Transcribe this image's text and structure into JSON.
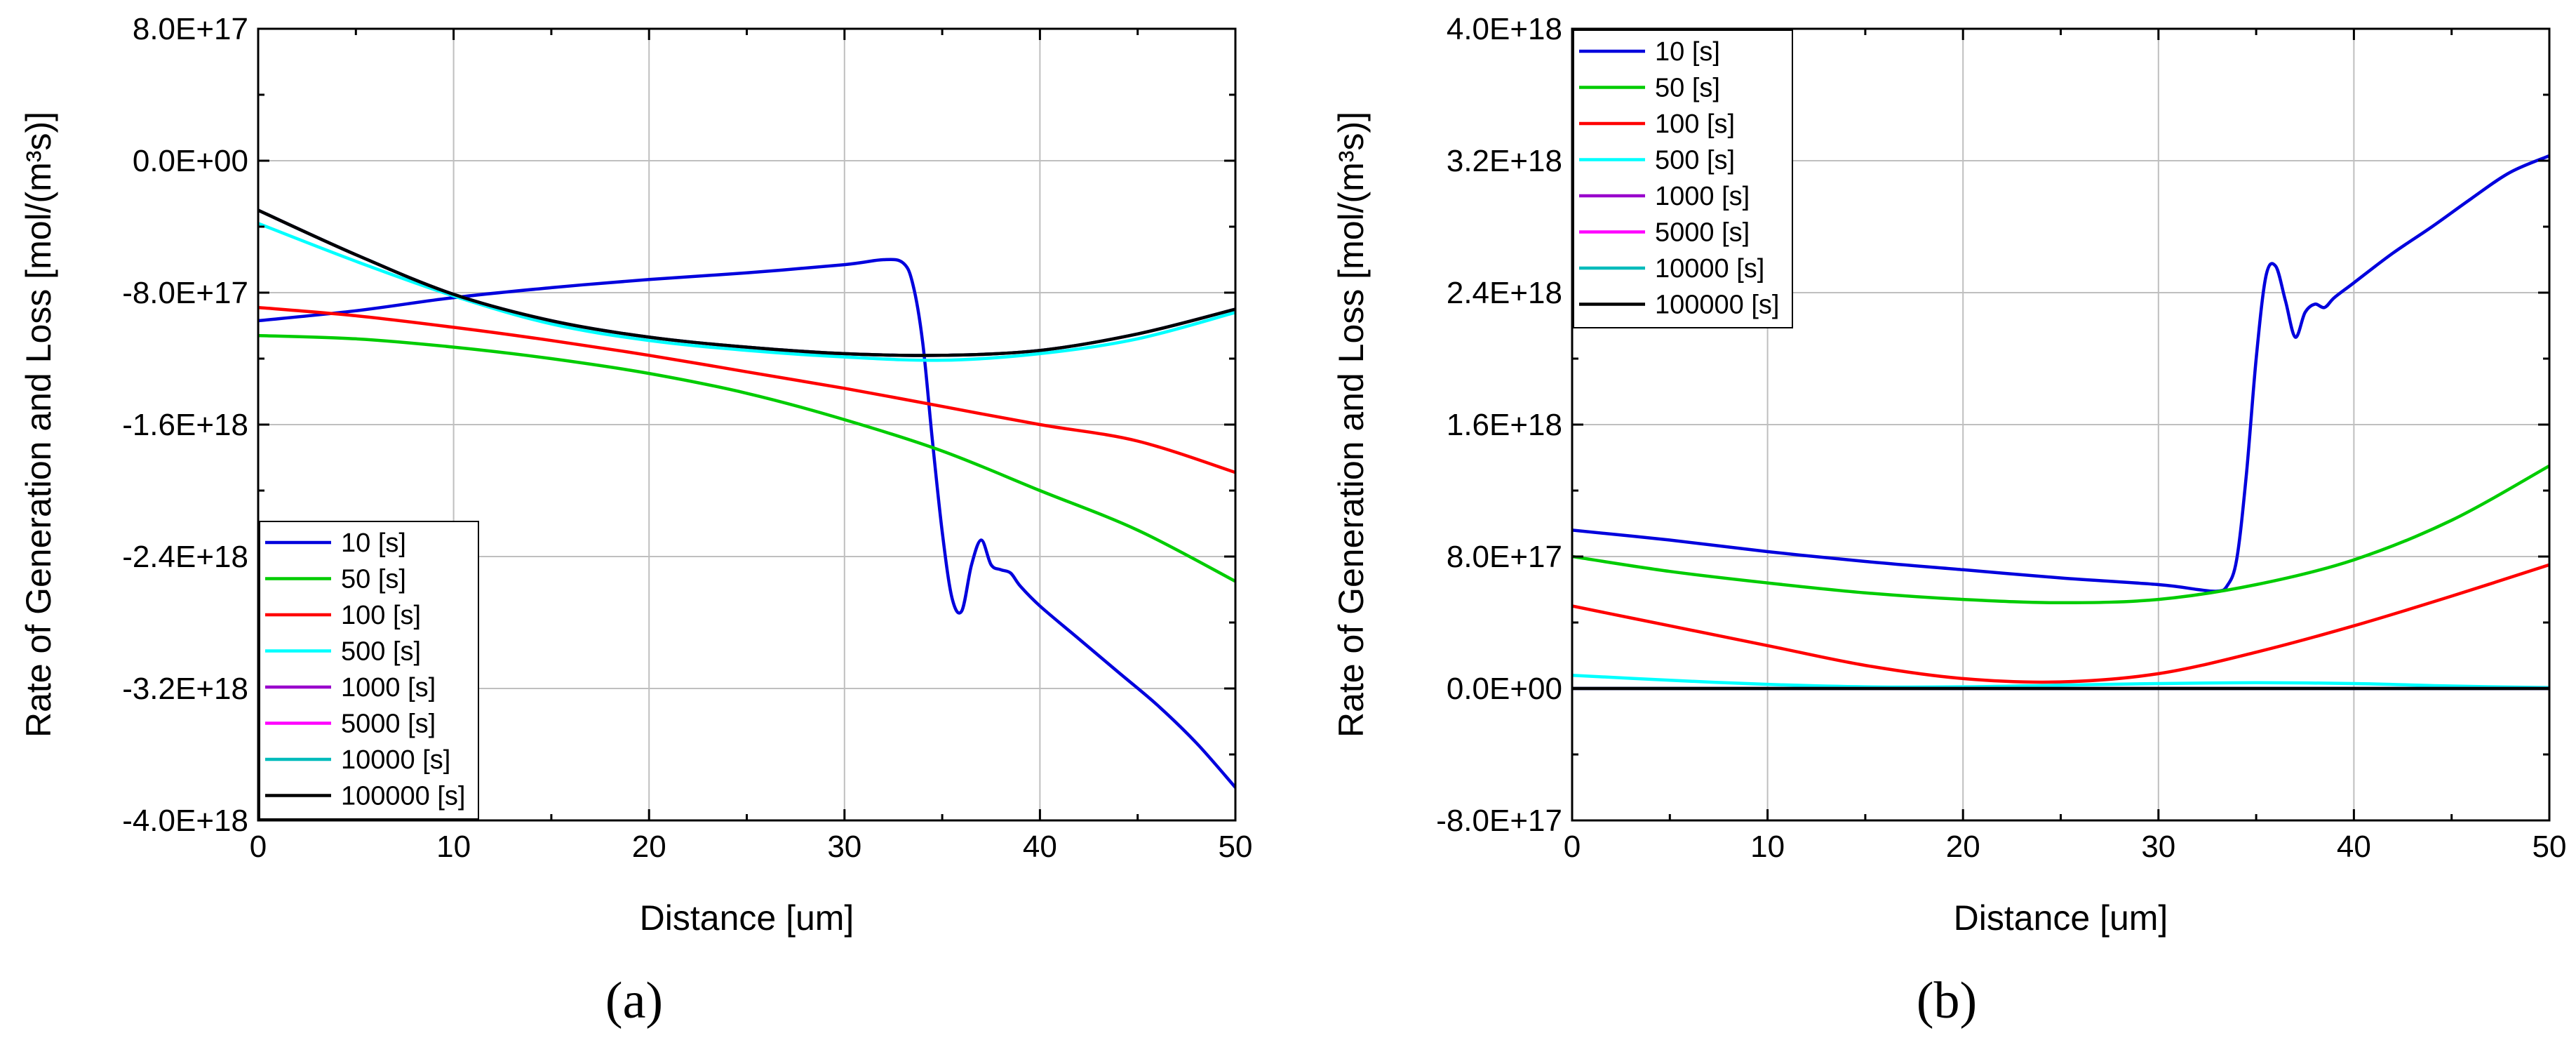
{
  "chart_data": [
    {
      "panel_label": "(a)",
      "type": "line",
      "title": "",
      "xlabel": "Distance [um]",
      "ylabel": "Rate of Generation and Loss [mol/(m³s)]",
      "xlim": [
        0,
        50
      ],
      "ylim": [
        -4e+18,
        8e+17
      ],
      "x_ticks": [
        0,
        10,
        20,
        30,
        40,
        50
      ],
      "x_tick_labels": [
        "0",
        "10",
        "20",
        "30",
        "40",
        "50"
      ],
      "y_ticks": [
        8e+17,
        0,
        -8e+17,
        -1.6e+18,
        -2.4e+18,
        -3.2e+18,
        -4e+18
      ],
      "y_tick_labels": [
        "8.0E+17",
        "0.0E+00",
        "-8.0E+17",
        "-1.6E+18",
        "-2.4E+18",
        "-3.2E+18",
        "-4.0E+18"
      ],
      "grid": true,
      "legend_position": "bottom-left",
      "series": [
        {
          "name": "10 [s]",
          "color": "#0000dd",
          "x": [
            0,
            5,
            10,
            15,
            20,
            25,
            30,
            32,
            33,
            33.5,
            34,
            34.5,
            35,
            35.5,
            36,
            36.5,
            37,
            37.5,
            38,
            38.5,
            39,
            40,
            42,
            44,
            46,
            48,
            50
          ],
          "y": [
            -9.7e+17,
            -9.1e+17,
            -8.3e+17,
            -7.7e+17,
            -7.2e+17,
            -6.8e+17,
            -6.3e+17,
            -6e+17,
            -6.2e+17,
            -7.5e+17,
            -1.1e+18,
            -1.7e+18,
            -2.25e+18,
            -2.65e+18,
            -2.73e+18,
            -2.45e+18,
            -2.3e+18,
            -2.45e+18,
            -2.48e+18,
            -2.5e+18,
            -2.58e+18,
            -2.7e+18,
            -2.9e+18,
            -3.1e+18,
            -3.3e+18,
            -3.53e+18,
            -3.8e+18
          ]
        },
        {
          "name": "50 [s]",
          "color": "#00cc00",
          "x": [
            0,
            5,
            10,
            15,
            20,
            25,
            30,
            35,
            40,
            45,
            50
          ],
          "y": [
            -1.06e+18,
            -1.08e+18,
            -1.13e+18,
            -1.2e+18,
            -1.29e+18,
            -1.41e+18,
            -1.57e+18,
            -1.76e+18,
            -2e+18,
            -2.24e+18,
            -2.55e+18
          ]
        },
        {
          "name": "100 [s]",
          "color": "#ff0000",
          "x": [
            0,
            5,
            10,
            15,
            20,
            25,
            30,
            35,
            40,
            45,
            50
          ],
          "y": [
            -8.9e+17,
            -9.4e+17,
            -1.01e+18,
            -1.09e+18,
            -1.18e+18,
            -1.28e+18,
            -1.38e+18,
            -1.49e+18,
            -1.6e+18,
            -1.7e+18,
            -1.89e+18
          ]
        },
        {
          "name": "500 [s]",
          "color": "#00ffff",
          "x": [
            0,
            5,
            10,
            15,
            20,
            25,
            30,
            35,
            40,
            45,
            50
          ],
          "y": [
            -3.8e+17,
            -6.1e+17,
            -8.2e+17,
            -9.9e+17,
            -1.09e+18,
            -1.15e+18,
            -1.19e+18,
            -1.21e+18,
            -1.17e+18,
            -1.08e+18,
            -9.2e+17
          ]
        },
        {
          "name": "1000 [s]",
          "color": "#9900cc",
          "x": [
            0,
            5,
            10,
            15,
            20,
            25,
            30,
            35,
            40,
            45,
            50
          ],
          "y": [
            -3e+17,
            -5.7e+17,
            -8.1e+17,
            -9.7e+17,
            -1.07e+18,
            -1.13e+18,
            -1.17e+18,
            -1.18e+18,
            -1.15e+18,
            -1.05e+18,
            -9e+17
          ]
        },
        {
          "name": "5000 [s]",
          "color": "#ff00ff",
          "x": [
            0,
            5,
            10,
            15,
            20,
            25,
            30,
            35,
            40,
            45,
            50
          ],
          "y": [
            -3e+17,
            -5.7e+17,
            -8.1e+17,
            -9.7e+17,
            -1.07e+18,
            -1.13e+18,
            -1.17e+18,
            -1.18e+18,
            -1.15e+18,
            -1.05e+18,
            -9e+17
          ]
        },
        {
          "name": "10000 [s]",
          "color": "#00bbbb",
          "x": [
            0,
            5,
            10,
            15,
            20,
            25,
            30,
            35,
            40,
            45,
            50
          ],
          "y": [
            -3e+17,
            -5.7e+17,
            -8.1e+17,
            -9.7e+17,
            -1.07e+18,
            -1.13e+18,
            -1.17e+18,
            -1.18e+18,
            -1.15e+18,
            -1.05e+18,
            -9e+17
          ]
        },
        {
          "name": "100000 [s]",
          "color": "#000000",
          "x": [
            0,
            5,
            10,
            15,
            20,
            25,
            30,
            35,
            40,
            45,
            50
          ],
          "y": [
            -3e+17,
            -5.7e+17,
            -8.1e+17,
            -9.7e+17,
            -1.07e+18,
            -1.13e+18,
            -1.17e+18,
            -1.18e+18,
            -1.15e+18,
            -1.05e+18,
            -9e+17
          ]
        }
      ]
    },
    {
      "panel_label": "(b)",
      "type": "line",
      "title": "",
      "xlabel": "Distance [um]",
      "ylabel": "Rate of Generation and Loss [mol/(m³s)]",
      "xlim": [
        0,
        50
      ],
      "ylim": [
        -8e+17,
        4e+18
      ],
      "x_ticks": [
        0,
        10,
        20,
        30,
        40,
        50
      ],
      "x_tick_labels": [
        "0",
        "10",
        "20",
        "30",
        "40",
        "50"
      ],
      "y_ticks": [
        4e+18,
        3.2e+18,
        2.4e+18,
        1.6e+18,
        8e+17,
        0,
        -8e+17
      ],
      "y_tick_labels": [
        "4.0E+18",
        "3.2E+18",
        "2.4E+18",
        "1.6E+18",
        "8.0E+17",
        "0.0E+00",
        "-8.0E+17"
      ],
      "grid": true,
      "legend_position": "top-left",
      "series": [
        {
          "name": "10 [s]",
          "color": "#0000dd",
          "x": [
            0,
            5,
            10,
            15,
            20,
            25,
            30,
            32,
            33,
            33.5,
            34,
            34.5,
            35,
            35.5,
            36,
            36.5,
            37,
            37.5,
            38,
            38.5,
            39,
            40,
            42,
            44,
            46,
            48,
            50
          ],
          "y": [
            9.6e+17,
            9e+17,
            8.3e+17,
            7.7e+17,
            7.2e+17,
            6.7e+17,
            6.3e+17,
            6e+17,
            5.9e+17,
            6.2e+17,
            7.8e+17,
            1.3e+18,
            2e+18,
            2.5e+18,
            2.56e+18,
            2.35e+18,
            2.13e+18,
            2.28e+18,
            2.33e+18,
            2.31e+18,
            2.37e+18,
            2.46e+18,
            2.64e+18,
            2.8e+18,
            2.97e+18,
            3.13e+18,
            3.23e+18
          ]
        },
        {
          "name": "50 [s]",
          "color": "#00cc00",
          "x": [
            0,
            5,
            10,
            15,
            20,
            25,
            30,
            35,
            40,
            45,
            50
          ],
          "y": [
            8e+17,
            7.1e+17,
            6.4e+17,
            5.8e+17,
            5.4e+17,
            5.2e+17,
            5.4e+17,
            6.3e+17,
            7.8e+17,
            1.02e+18,
            1.35e+18
          ]
        },
        {
          "name": "100 [s]",
          "color": "#ff0000",
          "x": [
            0,
            5,
            10,
            15,
            20,
            25,
            30,
            35,
            40,
            45,
            50
          ],
          "y": [
            5e+17,
            3.8e+17,
            2.6e+17,
            1.4e+17,
            6e+16,
            4e+16,
            9e+16,
            2.2e+17,
            3.8e+17,
            5.6e+17,
            7.5e+17
          ]
        },
        {
          "name": "500 [s]",
          "color": "#00ffff",
          "x": [
            0,
            5,
            10,
            15,
            20,
            25,
            30,
            35,
            40,
            45,
            50
          ],
          "y": [
            8e+16,
            5e+16,
            2.5e+16,
            1e+16,
            1e+16,
            2e+16,
            3e+16,
            3.5e+16,
            3e+16,
            1.5e+16,
            5000000000000000.0
          ]
        },
        {
          "name": "1000 [s]",
          "color": "#9900cc",
          "x": [
            0,
            10,
            20,
            30,
            40,
            50
          ],
          "y": [
            0,
            0,
            0,
            0,
            0,
            0
          ]
        },
        {
          "name": "5000 [s]",
          "color": "#ff00ff",
          "x": [
            0,
            10,
            20,
            30,
            40,
            50
          ],
          "y": [
            0,
            0,
            0,
            0,
            0,
            0
          ]
        },
        {
          "name": "10000 [s]",
          "color": "#00bbbb",
          "x": [
            0,
            10,
            20,
            30,
            40,
            50
          ],
          "y": [
            0,
            0,
            0,
            0,
            0,
            0
          ]
        },
        {
          "name": "100000 [s]",
          "color": "#000000",
          "x": [
            0,
            10,
            20,
            30,
            40,
            50
          ],
          "y": [
            0,
            0,
            0,
            0,
            0,
            0
          ]
        }
      ]
    }
  ]
}
